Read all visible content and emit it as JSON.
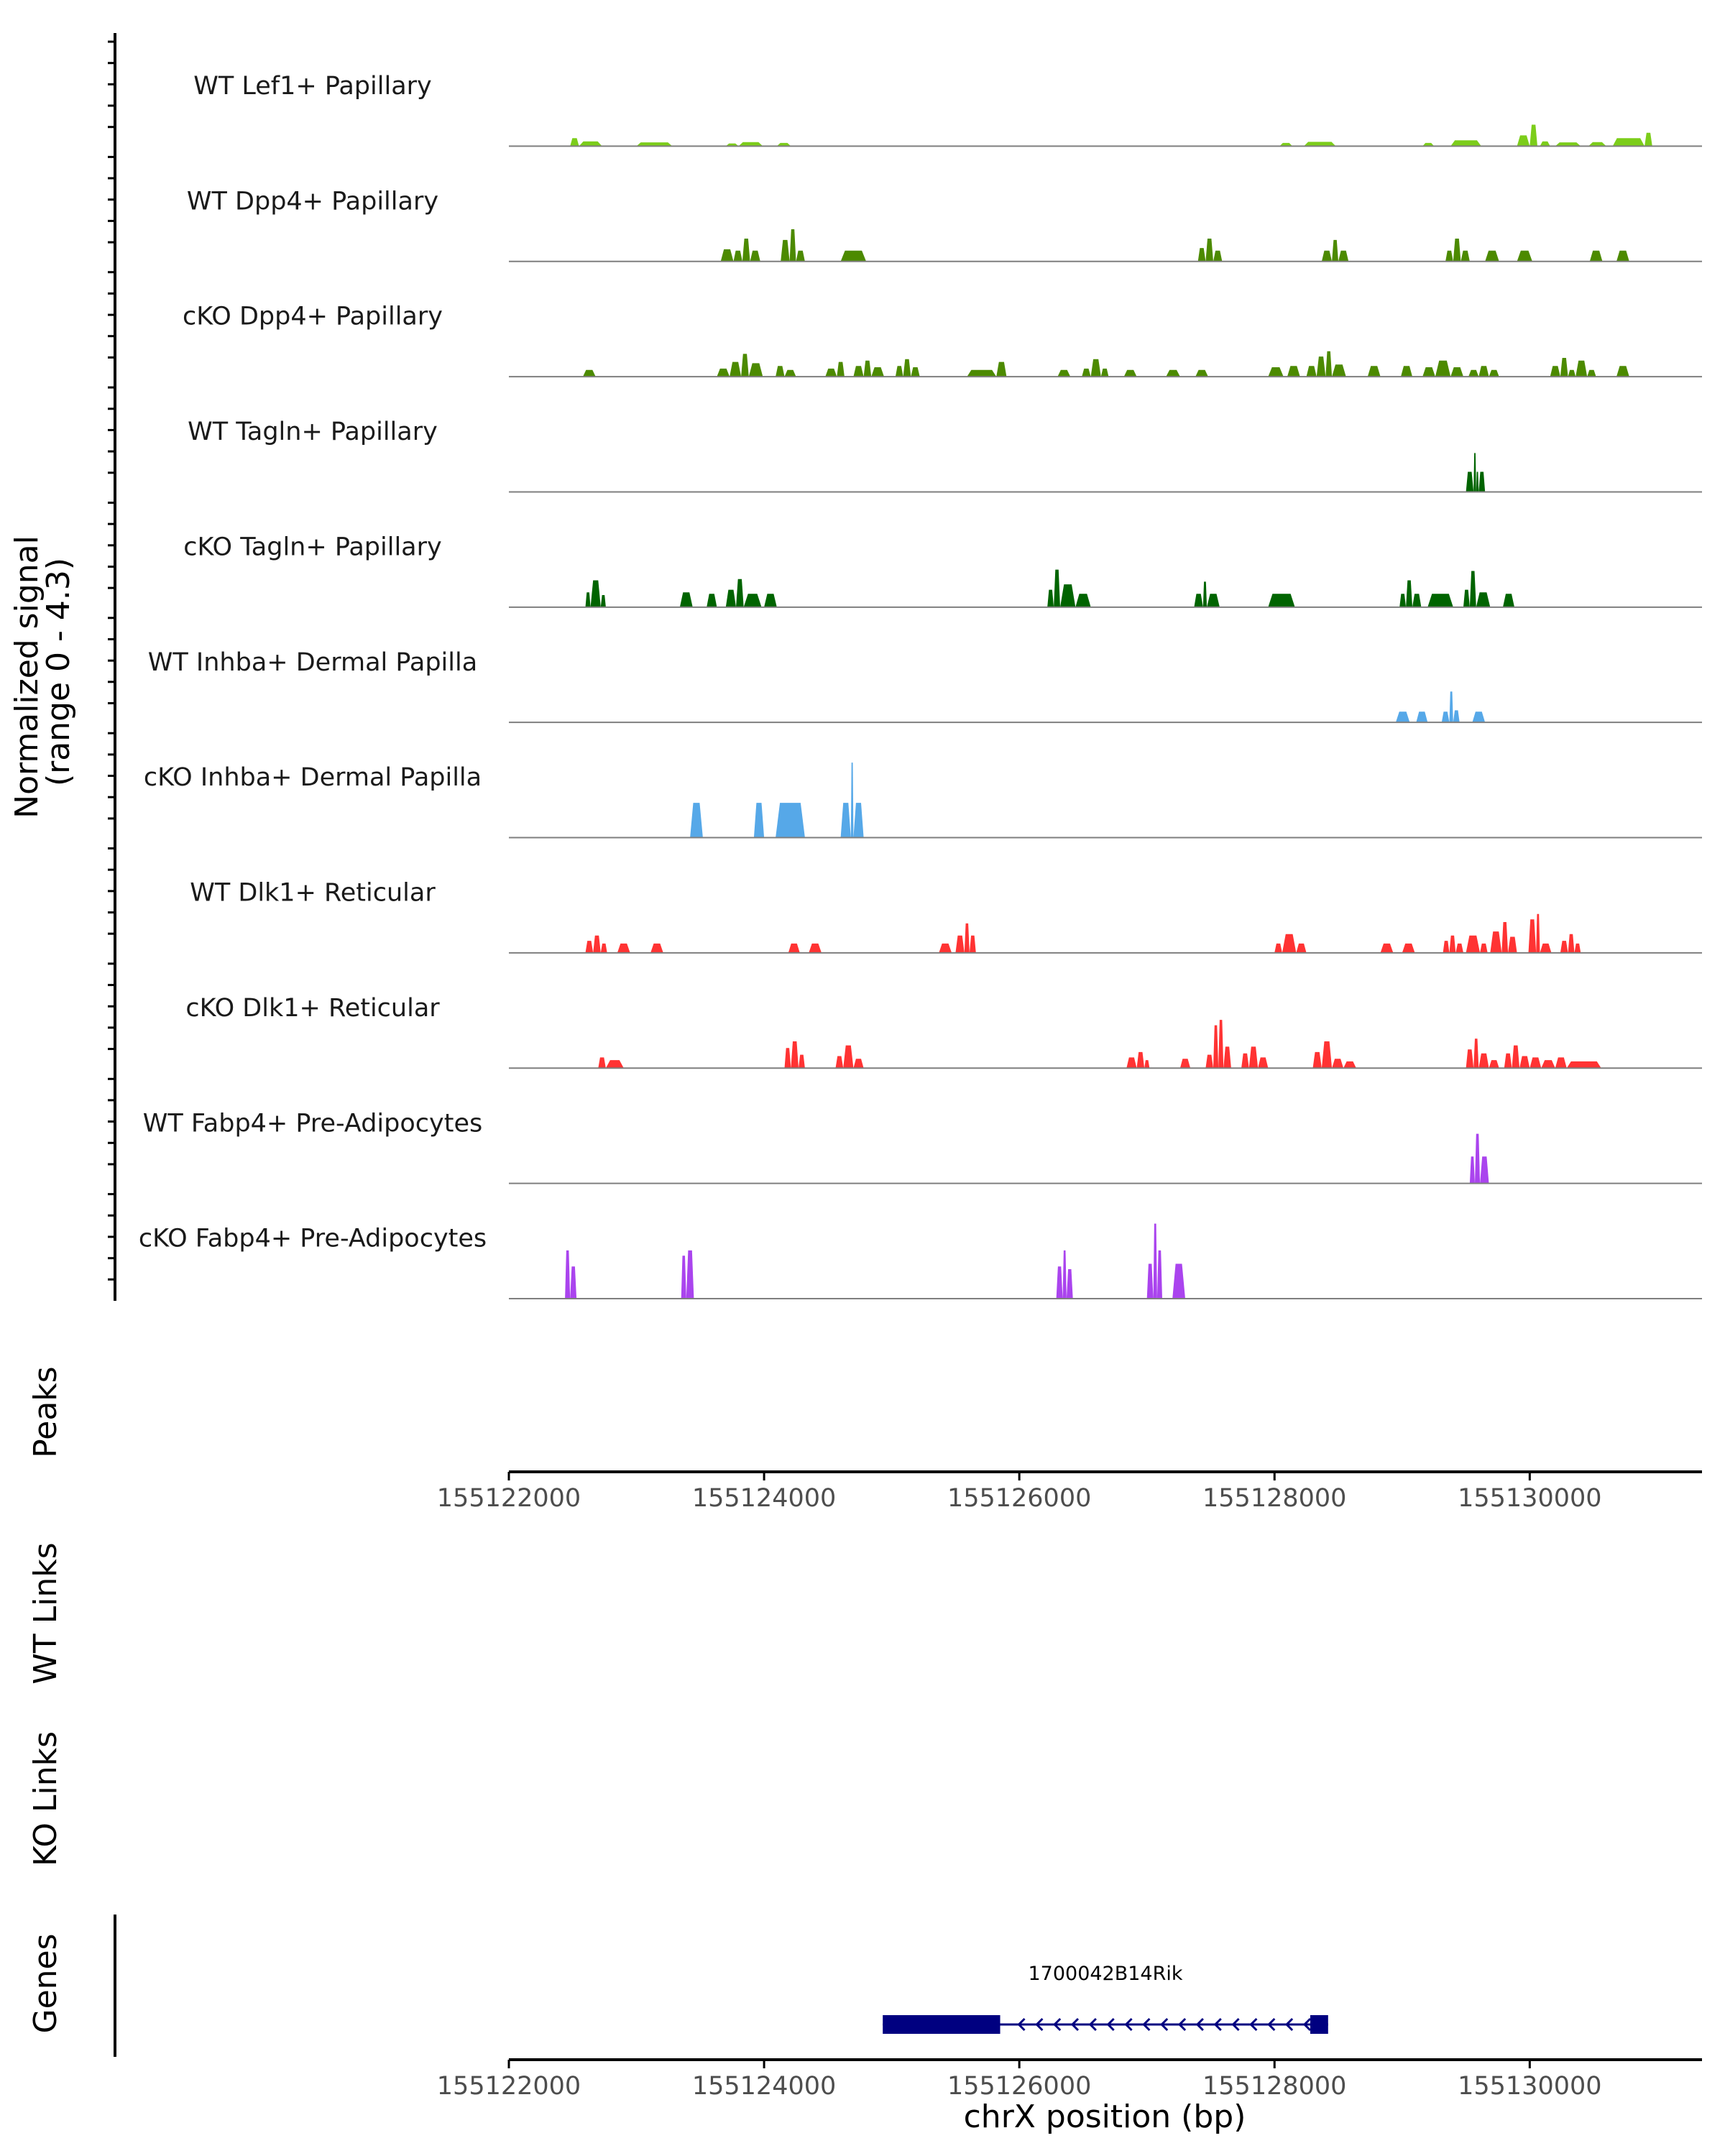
{
  "chart_data": {
    "type": "area",
    "chromosome": "chrX",
    "xlim": [
      155122000,
      155131350
    ],
    "ylim": [
      0,
      4.3
    ],
    "ylabel_lines": [
      "Normalized signal",
      "(range 0 - 4.3)"
    ],
    "xlabel": "chrX position (bp)",
    "x_ticks": [
      155122000,
      155124000,
      155126000,
      155128000,
      155130000
    ],
    "x_tick_labels": [
      "155122000",
      "155124000",
      "155126000",
      "155128000",
      "155130000"
    ],
    "panels": {
      "peaks": "Peaks",
      "wt_links": "WT Links",
      "ko_links": "KO Links",
      "genes": "Genes"
    },
    "gene": {
      "name": "1700042B14Rik",
      "start": 155124930,
      "end": 155128420,
      "strand": "-",
      "thick_start": 155124930,
      "thick_end": 155125850,
      "exon2_start": 155128280,
      "exon2_end": 155128420,
      "color": "#000080"
    },
    "tracks": [
      {
        "label": "WT Lef1+ Papillary",
        "color": "#7CCD1A",
        "peaks": [
          [
            155122480,
            155122550,
            0.3
          ],
          [
            155122550,
            155122730,
            0.18
          ],
          [
            155123000,
            155123280,
            0.14
          ],
          [
            155123700,
            155123800,
            0.1
          ],
          [
            155123800,
            155123990,
            0.15
          ],
          [
            155124100,
            155124210,
            0.12
          ],
          [
            155128040,
            155128140,
            0.12
          ],
          [
            155128230,
            155128480,
            0.16
          ],
          [
            155129160,
            155129250,
            0.12
          ],
          [
            155129380,
            155129620,
            0.22
          ],
          [
            155129900,
            155130000,
            0.4
          ],
          [
            155130000,
            155130060,
            0.8
          ],
          [
            155130080,
            155130160,
            0.18
          ],
          [
            155130200,
            155130400,
            0.14
          ],
          [
            155130460,
            155130600,
            0.15
          ],
          [
            155130650,
            155130900,
            0.3
          ],
          [
            155130900,
            155130960,
            0.5
          ]
        ]
      },
      {
        "label": "WT Dpp4+ Papillary",
        "color": "#4C8A00",
        "peaks": [
          [
            155123660,
            155123760,
            0.45
          ],
          [
            155123760,
            155123830,
            0.4
          ],
          [
            155123830,
            155123890,
            0.85
          ],
          [
            155123890,
            155123970,
            0.4
          ],
          [
            155124130,
            155124200,
            0.8
          ],
          [
            155124200,
            155124250,
            1.2
          ],
          [
            155124250,
            155124320,
            0.4
          ],
          [
            155124600,
            155124800,
            0.4
          ],
          [
            155127400,
            155127460,
            0.5
          ],
          [
            155127460,
            155127520,
            0.85
          ],
          [
            155127520,
            155127590,
            0.4
          ],
          [
            155128370,
            155128450,
            0.4
          ],
          [
            155128450,
            155128500,
            0.8
          ],
          [
            155128500,
            155128580,
            0.4
          ],
          [
            155129340,
            155129400,
            0.4
          ],
          [
            155129400,
            155129460,
            0.85
          ],
          [
            155129460,
            155129530,
            0.4
          ],
          [
            155129650,
            155129760,
            0.4
          ],
          [
            155129900,
            155130020,
            0.4
          ],
          [
            155130470,
            155130570,
            0.4
          ],
          [
            155130680,
            155130780,
            0.4
          ]
        ]
      },
      {
        "label": "cKO Dpp4+ Papillary",
        "color": "#4C8A00",
        "peaks": [
          [
            155122580,
            155122680,
            0.25
          ],
          [
            155123630,
            155123730,
            0.3
          ],
          [
            155123730,
            155123820,
            0.55
          ],
          [
            155123820,
            155123880,
            0.85
          ],
          [
            155123880,
            155123990,
            0.5
          ],
          [
            155124090,
            155124160,
            0.4
          ],
          [
            155124160,
            155124250,
            0.25
          ],
          [
            155124480,
            155124570,
            0.3
          ],
          [
            155124570,
            155124630,
            0.55
          ],
          [
            155124700,
            155124780,
            0.4
          ],
          [
            155124780,
            155124840,
            0.6
          ],
          [
            155124840,
            155124940,
            0.35
          ],
          [
            155125030,
            155125090,
            0.4
          ],
          [
            155125090,
            155125150,
            0.65
          ],
          [
            155125150,
            155125220,
            0.35
          ],
          [
            155125590,
            155125820,
            0.25
          ],
          [
            155125820,
            155125900,
            0.55
          ],
          [
            155126300,
            155126400,
            0.25
          ],
          [
            155126490,
            155126560,
            0.3
          ],
          [
            155126560,
            155126640,
            0.65
          ],
          [
            155126640,
            155126700,
            0.3
          ],
          [
            155126820,
            155126920,
            0.25
          ],
          [
            155127150,
            155127260,
            0.25
          ],
          [
            155127380,
            155127480,
            0.25
          ],
          [
            155127950,
            155128070,
            0.35
          ],
          [
            155128100,
            155128200,
            0.4
          ],
          [
            155128250,
            155128330,
            0.4
          ],
          [
            155128330,
            155128400,
            0.75
          ],
          [
            155128400,
            155128450,
            0.95
          ],
          [
            155128450,
            155128560,
            0.45
          ],
          [
            155128730,
            155128830,
            0.4
          ],
          [
            155128990,
            155129080,
            0.4
          ],
          [
            155129160,
            155129260,
            0.35
          ],
          [
            155129260,
            155129380,
            0.6
          ],
          [
            155129380,
            155129480,
            0.35
          ],
          [
            155129520,
            155129600,
            0.25
          ],
          [
            155129600,
            155129680,
            0.4
          ],
          [
            155129680,
            155129760,
            0.25
          ],
          [
            155130160,
            155130240,
            0.4
          ],
          [
            155130240,
            155130300,
            0.7
          ],
          [
            155130300,
            155130360,
            0.25
          ],
          [
            155130360,
            155130450,
            0.6
          ],
          [
            155130450,
            155130520,
            0.25
          ],
          [
            155130680,
            155130780,
            0.4
          ]
        ]
      },
      {
        "label": "WT Tagln+ Papillary",
        "color": "#006400",
        "peaks": [
          [
            155129500,
            155129560,
            0.75
          ],
          [
            155129560,
            155129580,
            1.45
          ],
          [
            155129580,
            155129600,
            0.75
          ],
          [
            155129600,
            155129650,
            0.75
          ]
        ]
      },
      {
        "label": "cKO Tagln+ Papillary",
        "color": "#006400",
        "peaks": [
          [
            155122600,
            155122640,
            0.55
          ],
          [
            155122640,
            155122720,
            1.0
          ],
          [
            155122720,
            155122760,
            0.45
          ],
          [
            155123340,
            155123440,
            0.55
          ],
          [
            155123550,
            155123630,
            0.5
          ],
          [
            155123700,
            155123780,
            0.65
          ],
          [
            155123780,
            155123840,
            1.05
          ],
          [
            155123840,
            155123980,
            0.5
          ],
          [
            155124000,
            155124100,
            0.5
          ],
          [
            155126220,
            155126270,
            0.65
          ],
          [
            155126270,
            155126320,
            1.4
          ],
          [
            155126320,
            155126440,
            0.85
          ],
          [
            155126440,
            155126560,
            0.5
          ],
          [
            155127370,
            155127440,
            0.5
          ],
          [
            155127440,
            155127470,
            0.95
          ],
          [
            155127470,
            155127570,
            0.5
          ],
          [
            155127950,
            155128160,
            0.5
          ],
          [
            155128980,
            155129030,
            0.5
          ],
          [
            155129030,
            155129080,
            1.0
          ],
          [
            155129080,
            155129150,
            0.5
          ],
          [
            155129200,
            155129400,
            0.5
          ],
          [
            155129480,
            155129530,
            0.65
          ],
          [
            155129530,
            155129580,
            1.35
          ],
          [
            155129580,
            155129690,
            0.55
          ],
          [
            155129790,
            155129880,
            0.5
          ]
        ]
      },
      {
        "label": "WT Inhba+ Dermal Papilla",
        "color": "#56A8E8",
        "peaks": [
          [
            155128950,
            155129060,
            0.4
          ],
          [
            155129110,
            155129200,
            0.4
          ],
          [
            155129310,
            155129370,
            0.4
          ],
          [
            155129370,
            155129400,
            1.15
          ],
          [
            155129400,
            155129450,
            0.45
          ],
          [
            155129550,
            155129650,
            0.4
          ]
        ]
      },
      {
        "label": "cKO Inhba+ Dermal Papilla",
        "color": "#56A8E8",
        "peaks": [
          [
            155123420,
            155123520,
            1.3
          ],
          [
            155123920,
            155124000,
            1.3
          ],
          [
            155124090,
            155124320,
            1.3
          ],
          [
            155124600,
            155124680,
            1.3
          ],
          [
            155124680,
            155124700,
            2.8
          ],
          [
            155124700,
            155124780,
            1.3
          ]
        ]
      },
      {
        "label": "WT Dlk1+ Reticular",
        "color": "#FF3333",
        "peaks": [
          [
            155122600,
            155122660,
            0.45
          ],
          [
            155122660,
            155122720,
            0.65
          ],
          [
            155122720,
            155122770,
            0.35
          ],
          [
            155122850,
            155122950,
            0.35
          ],
          [
            155123110,
            155123210,
            0.35
          ],
          [
            155124190,
            155124280,
            0.35
          ],
          [
            155124350,
            155124450,
            0.35
          ],
          [
            155125370,
            155125470,
            0.35
          ],
          [
            155125500,
            155125570,
            0.65
          ],
          [
            155125570,
            155125610,
            1.1
          ],
          [
            155125610,
            155125660,
            0.65
          ],
          [
            155128000,
            155128060,
            0.35
          ],
          [
            155128060,
            155128170,
            0.7
          ],
          [
            155128170,
            155128250,
            0.35
          ],
          [
            155128830,
            155128930,
            0.35
          ],
          [
            155129000,
            155129100,
            0.35
          ],
          [
            155129320,
            155129370,
            0.45
          ],
          [
            155129370,
            155129420,
            0.65
          ],
          [
            155129420,
            155129480,
            0.35
          ],
          [
            155129500,
            155129610,
            0.65
          ],
          [
            155129610,
            155129670,
            0.35
          ],
          [
            155129690,
            155129780,
            0.8
          ],
          [
            155129780,
            155129830,
            1.15
          ],
          [
            155129830,
            155129900,
            0.6
          ],
          [
            155129990,
            155130050,
            1.25
          ],
          [
            155130050,
            155130080,
            1.45
          ],
          [
            155130080,
            155130170,
            0.35
          ],
          [
            155130240,
            155130300,
            0.45
          ],
          [
            155130300,
            155130350,
            0.7
          ],
          [
            155130350,
            155130400,
            0.35
          ]
        ]
      },
      {
        "label": "cKO Dlk1+ Reticular",
        "color": "#FF3333",
        "peaks": [
          [
            155122700,
            155122760,
            0.4
          ],
          [
            155122760,
            155122900,
            0.3
          ],
          [
            155124160,
            155124210,
            0.75
          ],
          [
            155124210,
            155124270,
            1.0
          ],
          [
            155124270,
            155124320,
            0.5
          ],
          [
            155124560,
            155124620,
            0.45
          ],
          [
            155124620,
            155124700,
            0.85
          ],
          [
            155124700,
            155124780,
            0.35
          ],
          [
            155126840,
            155126920,
            0.4
          ],
          [
            155126920,
            155126980,
            0.6
          ],
          [
            155126980,
            155127020,
            0.3
          ],
          [
            155127260,
            155127340,
            0.35
          ],
          [
            155127460,
            155127520,
            0.5
          ],
          [
            155127520,
            155127560,
            1.6
          ],
          [
            155127560,
            155127600,
            1.8
          ],
          [
            155127600,
            155127660,
            0.8
          ],
          [
            155127740,
            155127800,
            0.55
          ],
          [
            155127800,
            155127870,
            0.8
          ],
          [
            155127870,
            155127950,
            0.4
          ],
          [
            155128300,
            155128370,
            0.6
          ],
          [
            155128370,
            155128450,
            1.0
          ],
          [
            155128450,
            155128540,
            0.35
          ],
          [
            155128540,
            155128640,
            0.25
          ],
          [
            155129500,
            155129560,
            0.7
          ],
          [
            155129560,
            155129600,
            1.1
          ],
          [
            155129600,
            155129680,
            0.55
          ],
          [
            155129680,
            155129760,
            0.3
          ],
          [
            155129800,
            155129860,
            0.55
          ],
          [
            155129860,
            155129920,
            0.85
          ],
          [
            155129920,
            155130000,
            0.45
          ],
          [
            155130000,
            155130090,
            0.4
          ],
          [
            155130090,
            155130200,
            0.3
          ],
          [
            155130200,
            155130290,
            0.4
          ],
          [
            155130290,
            155130560,
            0.25
          ]
        ]
      },
      {
        "label": "WT Fabp4+ Pre-Adipocytes",
        "color": "#AA44EE",
        "peaks": [
          [
            155129530,
            155129570,
            1.0
          ],
          [
            155129570,
            155129610,
            1.85
          ],
          [
            155129610,
            155129680,
            1.0
          ]
        ]
      },
      {
        "label": "cKO Fabp4+ Pre-Adipocytes",
        "color": "#AA44EE",
        "peaks": [
          [
            155122440,
            155122480,
            1.8
          ],
          [
            155122480,
            155122530,
            1.2
          ],
          [
            155123350,
            155123390,
            1.6
          ],
          [
            155123390,
            155123450,
            1.8
          ],
          [
            155126290,
            155126340,
            1.2
          ],
          [
            155126340,
            155126370,
            1.8
          ],
          [
            155126370,
            155126420,
            1.1
          ],
          [
            155127000,
            155127050,
            1.3
          ],
          [
            155127050,
            155127080,
            2.8
          ],
          [
            155127080,
            155127120,
            1.8
          ],
          [
            155127200,
            155127300,
            1.3
          ]
        ]
      }
    ]
  }
}
